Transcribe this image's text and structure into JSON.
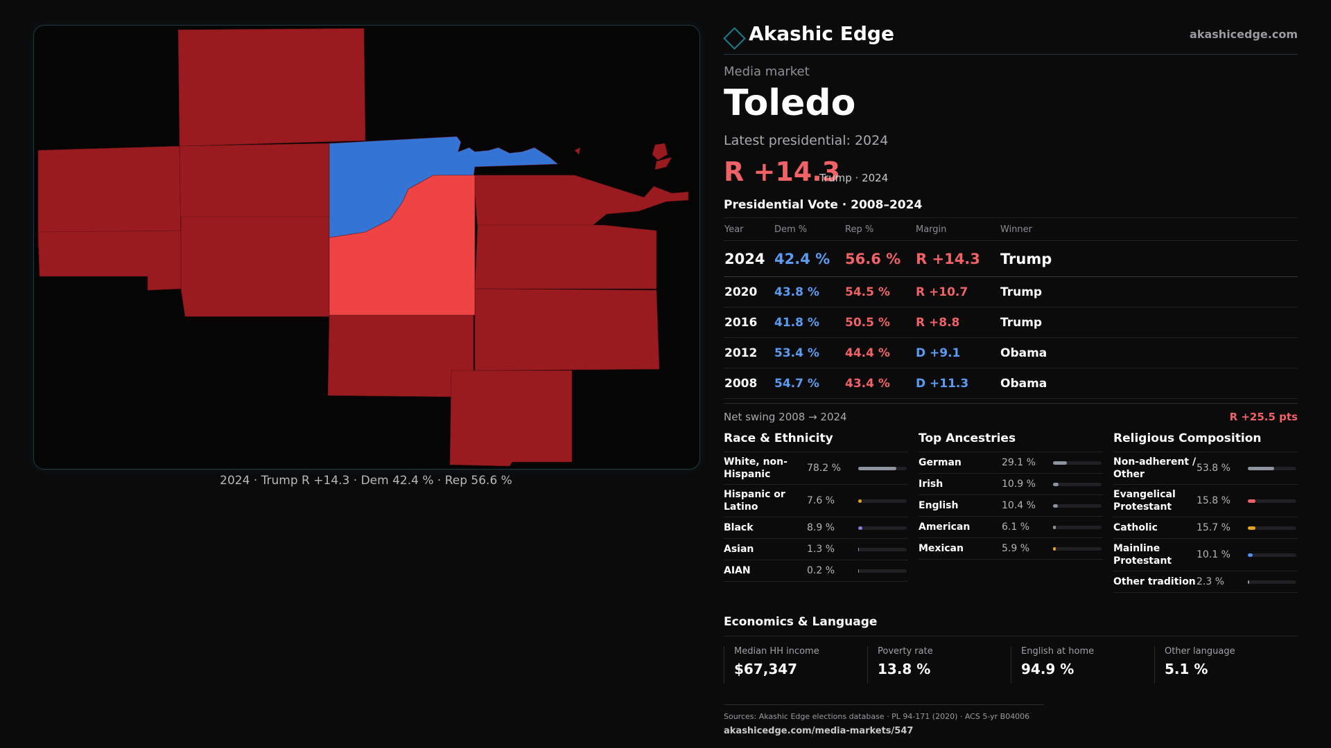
{
  "colors": {
    "rep": "#f16266",
    "rep_dark_fill": "#9a1b1f",
    "rep_focus_fill": "#ef4444",
    "dem": "#5b9cf3",
    "dem_fill": "#3474d4",
    "accent": "#1d7d86",
    "white_bar": "#8e93a0",
    "hispanic_bar": "#e3a320",
    "black_bar": "#8b7bd8",
    "catholic_bar": "#e3a320",
    "mainline_bar": "#4d8ff0",
    "evangelical_bar": "#f16266"
  },
  "map": {
    "caption": "2024 · Trump R +14.3 · Dem 42.4 % · Rep 56.6 %"
  },
  "brand": {
    "icon": "diamond-logo-icon",
    "name": "Akashic Edge",
    "url": "akashicedge.com"
  },
  "header": {
    "kicker": "Media market",
    "title": "Toledo",
    "latest_label": "Latest presidential: 2024",
    "latest_margin": "R +14.3",
    "latest_sub": "Trump · 2024"
  },
  "votes": {
    "title": "Presidential Vote · 2008–2024",
    "headers": [
      "Year",
      "Dem %",
      "Rep %",
      "Margin",
      "Winner"
    ],
    "rows": [
      {
        "year": "2024",
        "dem": "42.4 %",
        "rep": "56.6 %",
        "margin": "R +14.3",
        "party": "R",
        "winner": "Trump"
      },
      {
        "year": "2020",
        "dem": "43.8 %",
        "rep": "54.5 %",
        "margin": "R +10.7",
        "party": "R",
        "winner": "Trump"
      },
      {
        "year": "2016",
        "dem": "41.8 %",
        "rep": "50.5 %",
        "margin": "R +8.8",
        "party": "R",
        "winner": "Trump"
      },
      {
        "year": "2012",
        "dem": "53.4 %",
        "rep": "44.4 %",
        "margin": "D +9.1",
        "party": "D",
        "winner": "Obama"
      },
      {
        "year": "2008",
        "dem": "54.7 %",
        "rep": "43.4 %",
        "margin": "D +11.3",
        "party": "D",
        "winner": "Obama"
      }
    ],
    "swing_label": "Net swing 2008 → 2024",
    "swing_value": "R +25.5 pts"
  },
  "race": {
    "title": "Race & Ethnicity",
    "items": [
      {
        "name": "White, non-Hispanic",
        "pct": "78.2 %",
        "value": 0.782,
        "color": "#8e93a0"
      },
      {
        "name": "Hispanic or Latino",
        "pct": "7.6 %",
        "value": 0.076,
        "color": "#e3a320"
      },
      {
        "name": "Black",
        "pct": "8.9 %",
        "value": 0.089,
        "color": "#8b7bd8"
      },
      {
        "name": "Asian",
        "pct": "1.3 %",
        "value": 0.013,
        "color": "#8e93a0"
      },
      {
        "name": "AIAN",
        "pct": "0.2 %",
        "value": 0.002,
        "color": "#8e93a0"
      }
    ]
  },
  "ancestry": {
    "title": "Top Ancestries",
    "items": [
      {
        "name": "German",
        "pct": "29.1 %",
        "value": 0.291,
        "color": "#8e93a0"
      },
      {
        "name": "Irish",
        "pct": "10.9 %",
        "value": 0.109,
        "color": "#8e93a0"
      },
      {
        "name": "English",
        "pct": "10.4 %",
        "value": 0.104,
        "color": "#8e93a0"
      },
      {
        "name": "American",
        "pct": "6.1 %",
        "value": 0.061,
        "color": "#8e93a0"
      },
      {
        "name": "Mexican",
        "pct": "5.9 %",
        "value": 0.059,
        "color": "#e3a320"
      }
    ]
  },
  "religion": {
    "title": "Religious Composition",
    "items": [
      {
        "name": "Non-adherent / Other",
        "pct": "53.8 %",
        "value": 0.538,
        "color": "#8e93a0"
      },
      {
        "name": "Evangelical Protestant",
        "pct": "15.8 %",
        "value": 0.158,
        "color": "#f16266"
      },
      {
        "name": "Catholic",
        "pct": "15.7 %",
        "value": 0.157,
        "color": "#e3a320"
      },
      {
        "name": "Mainline Protestant",
        "pct": "10.1 %",
        "value": 0.101,
        "color": "#4d8ff0"
      },
      {
        "name": "Other tradition",
        "pct": "2.3 %",
        "value": 0.023,
        "color": "#8e93a0"
      }
    ]
  },
  "economics": {
    "title": "Economics & Language",
    "items": [
      {
        "label": "Median HH income",
        "value": "$67,347"
      },
      {
        "label": "Poverty rate",
        "value": "13.8 %"
      },
      {
        "label": "English at home",
        "value": "94.9 %"
      },
      {
        "label": "Other language",
        "value": "5.1 %"
      }
    ]
  },
  "sources": {
    "line1": "Sources: Akashic Edge elections database · PL 94-171 (2020) · ACS 5-yr B04006",
    "line2": "akashicedge.com/media-markets/547"
  }
}
